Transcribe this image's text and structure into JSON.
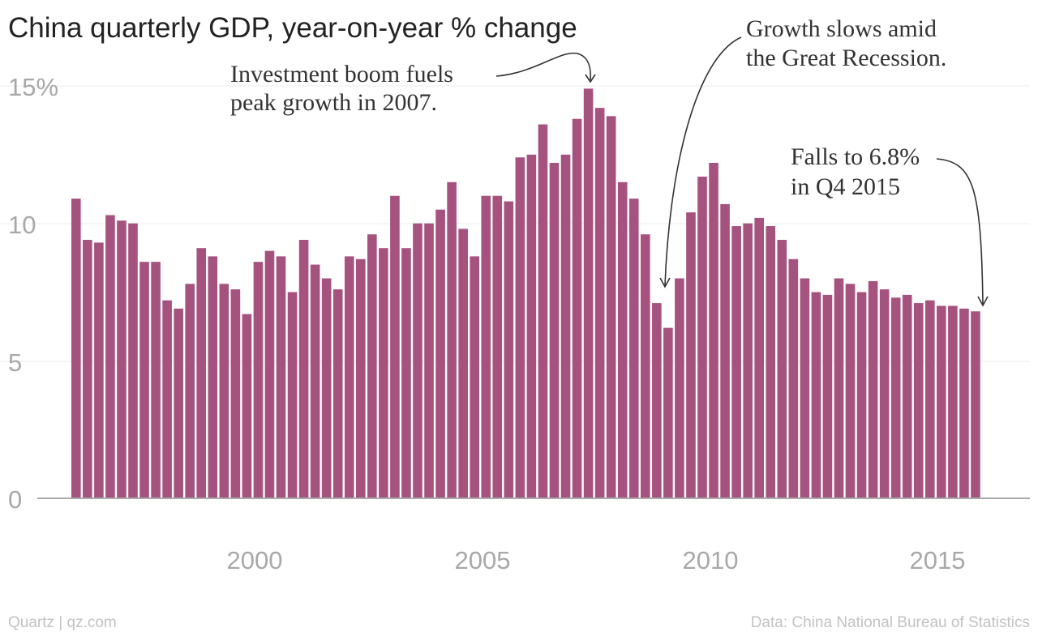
{
  "chart_data": {
    "type": "bar",
    "title": "China quarterly GDP, year-on-year % change",
    "y_unit_label": "15%",
    "ylim": [
      0,
      15
    ],
    "yticks": [
      0,
      5,
      10,
      15
    ],
    "xticks": [
      "2000",
      "2005",
      "2010",
      "2015"
    ],
    "grid": true,
    "bar_color": "#a6527f",
    "categories": [
      "1996 Q1",
      "1996 Q2",
      "1996 Q3",
      "1996 Q4",
      "1997 Q1",
      "1997 Q2",
      "1997 Q3",
      "1997 Q4",
      "1998 Q1",
      "1998 Q2",
      "1998 Q3",
      "1998 Q4",
      "1999 Q1",
      "1999 Q2",
      "1999 Q3",
      "1999 Q4",
      "2000 Q1",
      "2000 Q2",
      "2000 Q3",
      "2000 Q4",
      "2001 Q1",
      "2001 Q2",
      "2001 Q3",
      "2001 Q4",
      "2002 Q1",
      "2002 Q2",
      "2002 Q3",
      "2002 Q4",
      "2003 Q1",
      "2003 Q2",
      "2003 Q3",
      "2003 Q4",
      "2004 Q1",
      "2004 Q2",
      "2004 Q3",
      "2004 Q4",
      "2005 Q1",
      "2005 Q2",
      "2005 Q3",
      "2005 Q4",
      "2006 Q1",
      "2006 Q2",
      "2006 Q3",
      "2006 Q4",
      "2007 Q1",
      "2007 Q2",
      "2007 Q3",
      "2007 Q4",
      "2008 Q1",
      "2008 Q2",
      "2008 Q3",
      "2008 Q4",
      "2009 Q1",
      "2009 Q2",
      "2009 Q3",
      "2009 Q4",
      "2010 Q1",
      "2010 Q2",
      "2010 Q3",
      "2010 Q4",
      "2011 Q1",
      "2011 Q2",
      "2011 Q3",
      "2011 Q4",
      "2012 Q1",
      "2012 Q2",
      "2012 Q3",
      "2012 Q4",
      "2013 Q1",
      "2013 Q2",
      "2013 Q3",
      "2013 Q4",
      "2014 Q1",
      "2014 Q2",
      "2014 Q3",
      "2014 Q4",
      "2015 Q1",
      "2015 Q2",
      "2015 Q3",
      "2015 Q4"
    ],
    "values": [
      10.9,
      9.4,
      9.3,
      10.3,
      10.1,
      10.0,
      8.6,
      8.6,
      7.2,
      6.9,
      7.8,
      9.1,
      8.8,
      7.8,
      7.6,
      6.7,
      8.6,
      9.0,
      8.8,
      7.5,
      9.4,
      8.5,
      8.0,
      7.6,
      8.8,
      8.7,
      9.6,
      9.1,
      11.0,
      9.1,
      10.0,
      10.0,
      10.5,
      11.5,
      9.8,
      8.8,
      11.0,
      11.0,
      10.8,
      12.4,
      12.5,
      13.6,
      12.2,
      12.5,
      13.8,
      14.9,
      14.2,
      13.9,
      11.5,
      10.9,
      9.6,
      7.1,
      6.2,
      8.0,
      10.4,
      11.7,
      12.2,
      10.7,
      9.9,
      10.0,
      10.2,
      9.9,
      9.4,
      8.7,
      8.0,
      7.5,
      7.4,
      8.0,
      7.8,
      7.5,
      7.9,
      7.6,
      7.3,
      7.4,
      7.1,
      7.2,
      7.0,
      7.0,
      6.9,
      6.8
    ],
    "annotations": [
      {
        "lines": [
          "Investment boom fuels",
          "peak growth in 2007."
        ],
        "target": "2007 Q2"
      },
      {
        "lines": [
          "Growth slows amid",
          "the Great Recession."
        ],
        "target": "2008 Q4"
      },
      {
        "lines": [
          "Falls to 6.8%",
          "in Q4 2015"
        ],
        "target": "2015 Q4"
      }
    ]
  },
  "footer": {
    "left": "Quartz | qz.com",
    "right": "Data: China National Bureau of Statistics"
  }
}
